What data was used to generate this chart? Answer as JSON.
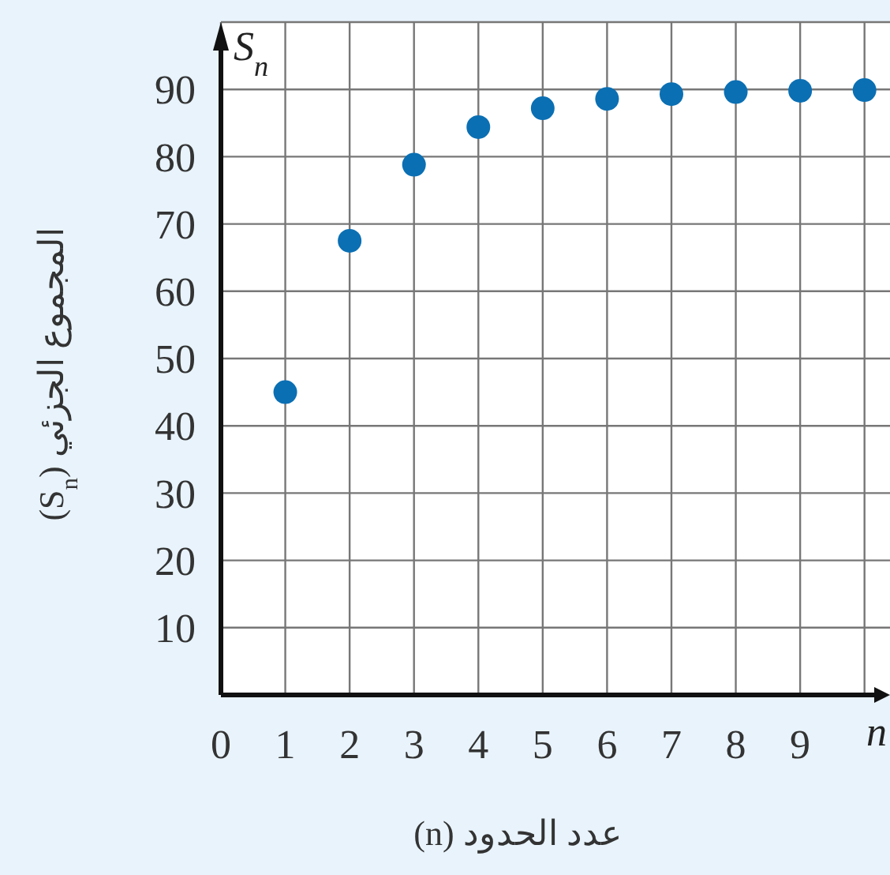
{
  "chart_data": {
    "type": "scatter",
    "xlabel": "عدد الحدود (n)",
    "ylabel": "المجموع الجزئي (S$_{n}$)",
    "x": [
      1,
      2,
      3,
      4,
      5,
      6,
      7,
      8,
      9,
      10
    ],
    "series": [
      {
        "color": "#0b6fb3",
        "values": [
          45,
          67.5,
          78.8,
          84.4,
          87.2,
          88.6,
          89.3,
          89.6,
          89.8,
          89.9
        ]
      }
    ],
    "xlim": [
      0,
      10.2
    ],
    "ylim": [
      0,
      100
    ],
    "xticks": [
      0,
      1,
      2,
      3,
      4,
      5,
      6,
      7,
      8,
      9,
      {
        "value": 10,
        "label": null
      }
    ],
    "yticks": [
      10,
      20,
      30,
      40,
      50,
      60,
      70,
      80,
      90,
      {
        "value": 100,
        "label": null
      }
    ],
    "grid": true,
    "marker": "circle",
    "annotations": [
      "S$_{n}$",
      "n"
    ]
  }
}
